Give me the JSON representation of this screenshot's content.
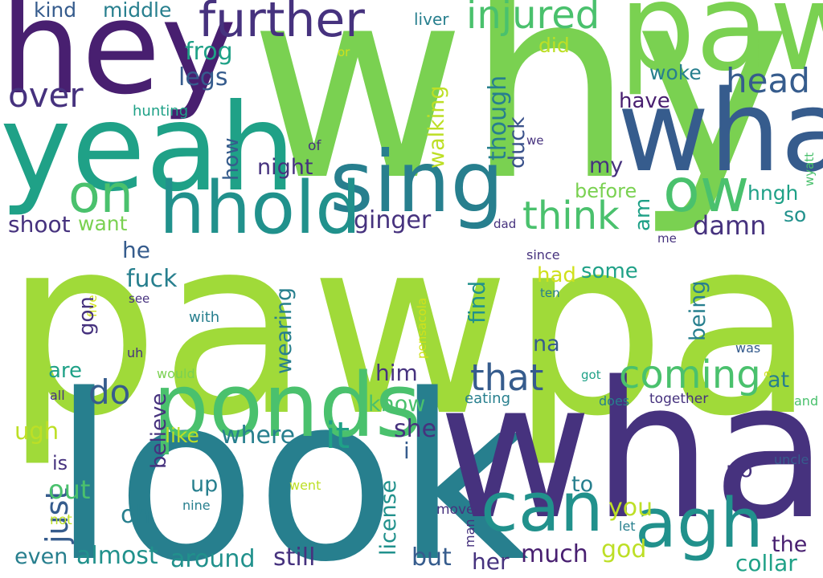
{
  "palette": {
    "purple": "#46327e",
    "violet": "#481f70",
    "indigo": "#3b528b",
    "blue": "#365c8d",
    "teal": "#277f8e",
    "teal2": "#21918c",
    "green": "#1fa187",
    "mint": "#4ac16d",
    "lime": "#7ad151",
    "lime2": "#a0da39",
    "yellow": "#bddf26",
    "gold": "#d0e11c"
  },
  "words": [
    {
      "text": "pawpaw",
      "color": "lime2"
    },
    {
      "text": "why",
      "color": "lime"
    },
    {
      "text": "look",
      "color": "teal"
    },
    {
      "text": "what",
      "color": "purple"
    },
    {
      "text": "paw",
      "color": "lime"
    },
    {
      "text": "hey",
      "color": "violet"
    },
    {
      "text": "yeah",
      "color": "green"
    },
    {
      "text": "wha",
      "color": "blue"
    },
    {
      "text": "ponds",
      "color": "mint"
    },
    {
      "text": "sing",
      "color": "teal"
    },
    {
      "text": "hhold",
      "color": "teal2"
    },
    {
      "text": "can",
      "color": "teal2"
    },
    {
      "text": "agh",
      "color": "teal2"
    },
    {
      "text": "on",
      "color": "mint"
    },
    {
      "text": "ow",
      "color": "mint"
    },
    {
      "text": "further",
      "color": "purple"
    },
    {
      "text": "injured",
      "color": "mint"
    },
    {
      "text": "think",
      "color": "mint"
    },
    {
      "text": "coming",
      "color": "mint"
    },
    {
      "text": "head",
      "color": "blue"
    },
    {
      "text": "that",
      "color": "blue"
    },
    {
      "text": "it",
      "color": "green"
    },
    {
      "text": "over",
      "color": "purple"
    },
    {
      "text": "do",
      "color": "blue"
    },
    {
      "text": "kind",
      "color": "blue"
    },
    {
      "text": "middle",
      "color": "teal"
    },
    {
      "text": "frog",
      "color": "green"
    },
    {
      "text": "legs",
      "color": "blue"
    },
    {
      "text": "did",
      "color": "yellow"
    },
    {
      "text": "woke",
      "color": "teal"
    },
    {
      "text": "liver",
      "color": "teal"
    },
    {
      "text": "or",
      "color": "gold"
    },
    {
      "text": "have",
      "color": "violet"
    },
    {
      "text": "hunting",
      "color": "green"
    },
    {
      "text": "walking",
      "color": "yellow"
    },
    {
      "text": "though",
      "color": "teal"
    },
    {
      "text": "duck",
      "color": "indigo"
    },
    {
      "text": "we",
      "color": "purple"
    },
    {
      "text": "of",
      "color": "purple"
    },
    {
      "text": "how",
      "color": "blue"
    },
    {
      "text": "night",
      "color": "purple"
    },
    {
      "text": "my",
      "color": "purple"
    },
    {
      "text": "wyatt",
      "color": "mint"
    },
    {
      "text": "before",
      "color": "lime"
    },
    {
      "text": "hngh",
      "color": "green"
    },
    {
      "text": "am",
      "color": "green"
    },
    {
      "text": "so",
      "color": "teal2"
    },
    {
      "text": "shoot",
      "color": "purple"
    },
    {
      "text": "want",
      "color": "lime"
    },
    {
      "text": "ginger",
      "color": "purple"
    },
    {
      "text": "damn",
      "color": "purple"
    },
    {
      "text": "dad",
      "color": "purple"
    },
    {
      "text": "me",
      "color": "purple"
    },
    {
      "text": "he",
      "color": "blue"
    },
    {
      "text": "since",
      "color": "purple"
    },
    {
      "text": "fuck",
      "color": "teal"
    },
    {
      "text": "find",
      "color": "teal2"
    },
    {
      "text": "some",
      "color": "green"
    },
    {
      "text": "had",
      "color": "gold"
    },
    {
      "text": "five",
      "color": "gold"
    },
    {
      "text": "see",
      "color": "purple"
    },
    {
      "text": "gon",
      "color": "purple"
    },
    {
      "text": "with",
      "color": "teal"
    },
    {
      "text": "wearing",
      "color": "teal"
    },
    {
      "text": "pensacola",
      "color": "gold"
    },
    {
      "text": "ten",
      "color": "teal"
    },
    {
      "text": "being",
      "color": "teal"
    },
    {
      "text": "na",
      "color": "blue"
    },
    {
      "text": "uh",
      "color": "purple"
    },
    {
      "text": "was",
      "color": "blue"
    },
    {
      "text": "are",
      "color": "green"
    },
    {
      "text": "believe",
      "color": "purple"
    },
    {
      "text": "would",
      "color": "lime"
    },
    {
      "text": "him",
      "color": "purple"
    },
    {
      "text": "got",
      "color": "green"
    },
    {
      "text": "a",
      "color": "gold"
    },
    {
      "text": "at",
      "color": "teal"
    },
    {
      "text": "all",
      "color": "purple"
    },
    {
      "text": "know",
      "color": "mint"
    },
    {
      "text": "eating",
      "color": "teal"
    },
    {
      "text": "does",
      "color": "teal"
    },
    {
      "text": "together",
      "color": "purple"
    },
    {
      "text": "and",
      "color": "mint"
    },
    {
      "text": "ugh",
      "color": "yellow"
    },
    {
      "text": "like",
      "color": "yellow"
    },
    {
      "text": "where",
      "color": "teal"
    },
    {
      "text": "she",
      "color": "purple"
    },
    {
      "text": "i",
      "color": "blue"
    },
    {
      "text": "is",
      "color": "purple"
    },
    {
      "text": "just",
      "color": "blue"
    },
    {
      "text": "up",
      "color": "teal"
    },
    {
      "text": "license",
      "color": "teal2"
    },
    {
      "text": "no",
      "color": "purple"
    },
    {
      "text": "to",
      "color": "teal"
    },
    {
      "text": "went",
      "color": "yellow"
    },
    {
      "text": "uncle",
      "color": "blue"
    },
    {
      "text": "out",
      "color": "mint"
    },
    {
      "text": "nine",
      "color": "teal"
    },
    {
      "text": "you",
      "color": "yellow"
    },
    {
      "text": "oh",
      "color": "teal"
    },
    {
      "text": "moved",
      "color": "purple"
    },
    {
      "text": "not",
      "color": "yellow"
    },
    {
      "text": "man",
      "color": "purple"
    },
    {
      "text": "let",
      "color": "teal"
    },
    {
      "text": "god",
      "color": "yellow"
    },
    {
      "text": "the",
      "color": "violet"
    },
    {
      "text": "even",
      "color": "teal"
    },
    {
      "text": "almost",
      "color": "teal2"
    },
    {
      "text": "around",
      "color": "teal2"
    },
    {
      "text": "still",
      "color": "purple"
    },
    {
      "text": "but",
      "color": "blue"
    },
    {
      "text": "her",
      "color": "purple"
    },
    {
      "text": "much",
      "color": "violet"
    },
    {
      "text": "collar",
      "color": "green"
    }
  ]
}
